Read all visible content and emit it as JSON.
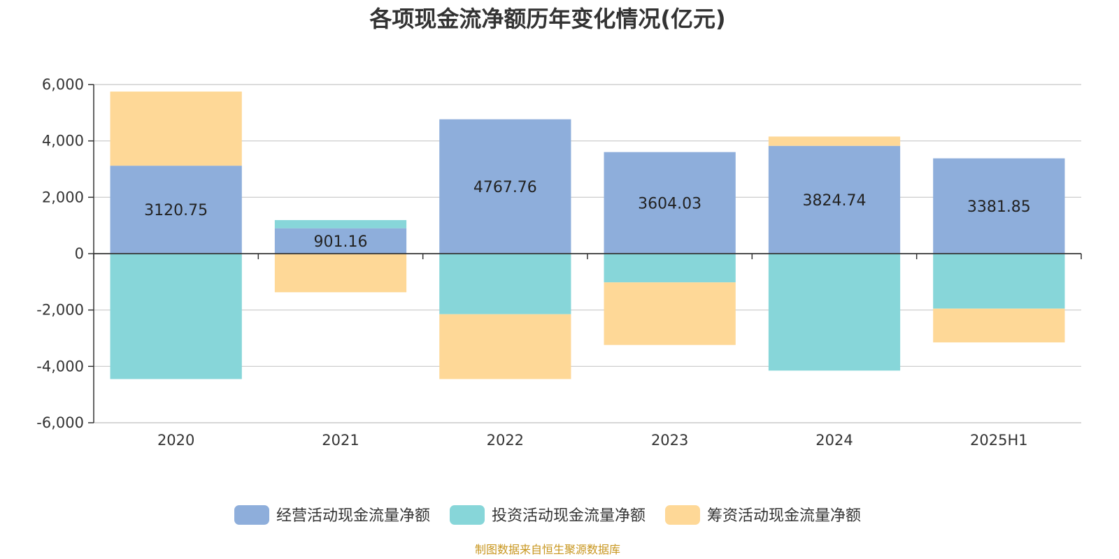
{
  "chart_data": {
    "type": "bar",
    "stacked": true,
    "title": "各项现金流净额历年变化情况(亿元)",
    "categories": [
      "2020",
      "2021",
      "2022",
      "2023",
      "2024",
      "2025H1"
    ],
    "ylim": [
      -6000,
      6000
    ],
    "yticks": [
      6000,
      4000,
      2000,
      0,
      -2000,
      -4000,
      -6000
    ],
    "ytick_labels": [
      "6,000",
      "4,000",
      "2,000",
      "0",
      "-2,000",
      "-4,000",
      "-6,000"
    ],
    "grid": true,
    "legend_position": "bottom",
    "series": [
      {
        "name": "经营活动现金流量净额",
        "color": "#8eaedb",
        "values": [
          3120.75,
          901.16,
          4767.76,
          3604.03,
          3824.74,
          3381.85
        ],
        "labels": [
          "3120.75",
          "901.16",
          "4767.76",
          "3604.03",
          "3824.74",
          "3381.85"
        ]
      },
      {
        "name": "投资活动现金流量净额",
        "color": "#87d6d9",
        "values": [
          -4450,
          290,
          -2150,
          -1020,
          -4150,
          -1950
        ]
      },
      {
        "name": "筹资活动现金流量净额",
        "color": "#fed897",
        "values": [
          2630,
          -1370,
          -2300,
          -2220,
          330,
          -1200
        ]
      }
    ]
  },
  "source": "制图数据来自恒生聚源数据库"
}
